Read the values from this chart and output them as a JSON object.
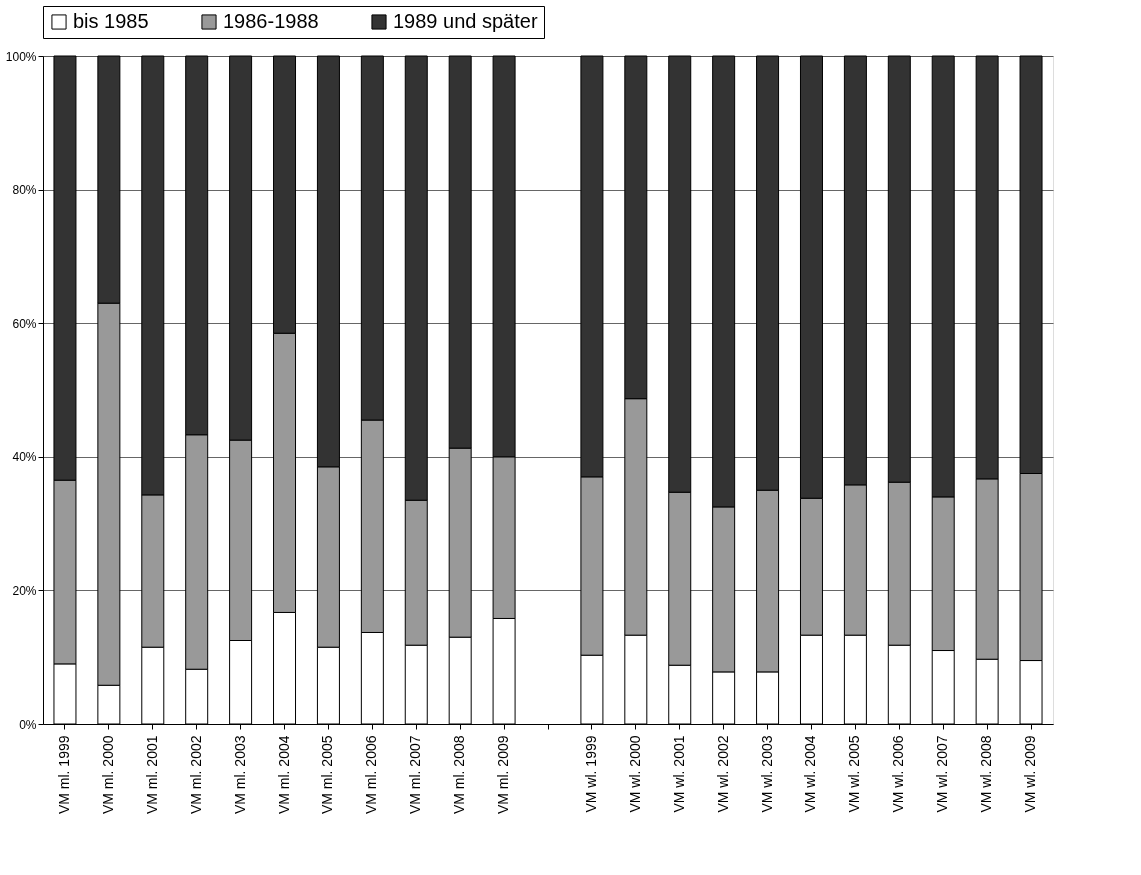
{
  "chart_data": {
    "type": "bar",
    "stacked": true,
    "categories": [
      "VM ml. 1999",
      "VM ml. 2000",
      "VM ml. 2001",
      "VM ml. 2002",
      "VM ml. 2003",
      "VM ml. 2004",
      "VM ml. 2005",
      "VM ml. 2006",
      "VM ml. 2007",
      "VM ml. 2008",
      "VM ml. 2009",
      null,
      "VM wl. 1999",
      "VM wl. 2000",
      "VM wl. 2001",
      "VM wl. 2002",
      "VM wl. 2003",
      "VM wl. 2004",
      "VM wl. 2005",
      "VM wl. 2006",
      "VM wl. 2007",
      "VM wl. 2008",
      "VM wl. 2009"
    ],
    "series": [
      {
        "name": "bis 1985",
        "color": "#ffffff",
        "values": [
          9,
          5.8,
          11.5,
          8.2,
          12.5,
          16.7,
          11.5,
          13.7,
          11.8,
          13,
          15.8,
          null,
          10.3,
          13.3,
          8.8,
          7.8,
          7.8,
          13.3,
          13.3,
          11.8,
          11,
          9.7,
          9.5
        ]
      },
      {
        "name": "1986-1988",
        "color": "#999999",
        "values": [
          27.5,
          57.2,
          22.8,
          35.1,
          30,
          41.8,
          27,
          31.8,
          21.7,
          28.3,
          24.2,
          null,
          26.7,
          35.4,
          25.9,
          24.7,
          27.2,
          20.5,
          22.5,
          24.4,
          23,
          27,
          28
        ]
      },
      {
        "name": "1989 und später",
        "color": "#333333",
        "values": [
          63.5,
          37,
          65.7,
          56.7,
          57.5,
          41.5,
          61.5,
          54.5,
          66.5,
          58.7,
          60,
          null,
          63,
          51.3,
          65.3,
          67.5,
          65,
          66.2,
          64.2,
          63.8,
          66,
          63.3,
          62.5
        ]
      }
    ],
    "ylim": [
      0,
      100
    ],
    "yticks": [
      {
        "value": 0,
        "label": "0%"
      },
      {
        "value": 20,
        "label": "20%"
      },
      {
        "value": 40,
        "label": "40%"
      },
      {
        "value": 60,
        "label": "60%"
      },
      {
        "value": 80,
        "label": "80%"
      },
      {
        "value": 100,
        "label": "100%"
      }
    ],
    "grid": "y",
    "legend": "top"
  }
}
